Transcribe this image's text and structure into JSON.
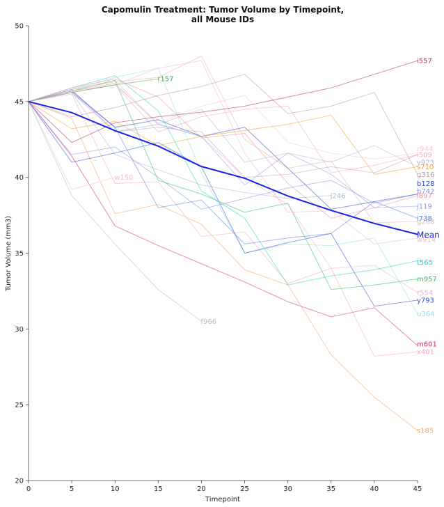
{
  "chart_data": {
    "type": "line",
    "title_lines": [
      "Capomulin Treatment: Tumor Volume by Timepoint,",
      "all Mouse IDs"
    ],
    "xlabel": "Timepoint",
    "ylabel": "Tumor Volume (mm3)",
    "xlim": [
      0,
      45
    ],
    "ylim": [
      20,
      50
    ],
    "x_ticks": [
      0,
      5,
      10,
      15,
      20,
      25,
      30,
      35,
      40,
      45
    ],
    "y_ticks": [
      20,
      25,
      30,
      35,
      40,
      45,
      50
    ],
    "grid": false,
    "series": [
      {
        "name": "s185",
        "color": "#f4a460",
        "x": [
          0,
          5,
          10,
          15,
          20,
          25,
          30,
          35,
          40,
          45
        ],
        "y": [
          45.0,
          43.9,
          37.6,
          38.2,
          36.9,
          33.9,
          32.9,
          28.3,
          25.5,
          23.3
        ],
        "label_y": 23.3
      },
      {
        "name": "x401",
        "color": "#f7a8b8",
        "x": [
          0,
          5,
          10,
          15,
          20,
          25,
          30,
          35,
          40,
          45
        ],
        "y": [
          45.0,
          45.5,
          39.6,
          39.7,
          36.1,
          36.4,
          33.0,
          34.0,
          28.2,
          28.5
        ],
        "label_y": 28.5
      },
      {
        "name": "m601",
        "color": "#d22d5e",
        "x": [
          0,
          5,
          10,
          15,
          20,
          25,
          30,
          35,
          40,
          45
        ],
        "y": [
          45.0,
          41.4,
          36.8,
          35.5,
          34.3,
          33.1,
          31.8,
          30.8,
          31.4,
          28.9
        ],
        "label_y": 29.0
      },
      {
        "name": "f966",
        "color": "#bbbbbb",
        "x": [
          0,
          5,
          10,
          15,
          20
        ],
        "y": [
          45.0,
          38.8,
          35.6,
          32.6,
          30.5
        ],
        "label_y": 30.5
      },
      {
        "name": "u364",
        "color": "#8fe3e0",
        "x": [
          0,
          5,
          10,
          15,
          20,
          25,
          30,
          35,
          40,
          45
        ],
        "y": [
          45.0,
          45.8,
          46.6,
          47.2,
          40.3,
          35.0,
          35.6,
          35.5,
          36.0,
          31.0
        ],
        "label_y": 31.0
      },
      {
        "name": "y793",
        "color": "#3b4fd9",
        "x": [
          0,
          5,
          10,
          15,
          20,
          25,
          30,
          35,
          40,
          45
        ],
        "y": [
          45.0,
          41.0,
          41.6,
          42.3,
          40.7,
          35.0,
          35.7,
          36.3,
          31.5,
          31.9
        ],
        "label_y": 31.9
      },
      {
        "name": "r554",
        "color": "#e3b9c8",
        "x": [
          0,
          5,
          10,
          15,
          20,
          25,
          30,
          35,
          40,
          45
        ],
        "y": [
          45.0,
          45.8,
          46.4,
          43.5,
          42.7,
          40.0,
          38.2,
          34.0,
          34.2,
          32.4
        ],
        "label_y": 32.4
      },
      {
        "name": "m957",
        "color": "#2dbf56",
        "x": [
          0,
          5,
          10,
          15,
          20,
          25,
          30,
          35,
          40,
          45
        ],
        "y": [
          45.0,
          45.7,
          46.4,
          39.8,
          38.9,
          37.7,
          38.3,
          32.6,
          32.9,
          33.3
        ],
        "label_y": 33.3
      },
      {
        "name": "t565",
        "color": "#27d3c3",
        "x": [
          0,
          5,
          10,
          15,
          20,
          25,
          30,
          35,
          40,
          45
        ],
        "y": [
          45.0,
          45.9,
          46.7,
          44.4,
          39.1,
          37.3,
          32.9,
          33.5,
          33.9,
          34.5
        ],
        "label_y": 34.4
      },
      {
        "name": "w914",
        "color": "#f5b7cf",
        "x": [
          0,
          5,
          10,
          15,
          20,
          25,
          30,
          35,
          40,
          45
        ],
        "y": [
          45.0,
          45.6,
          46.1,
          47.2,
          47.7,
          41.6,
          37.7,
          37.8,
          35.6,
          36.0
        ],
        "label_y": 35.9
      },
      {
        "name": "g288",
        "color": "#e9b4a8",
        "x": [
          0,
          5,
          10,
          15,
          20,
          25,
          30,
          35,
          40,
          45
        ],
        "y": [
          45.0,
          45.8,
          46.3,
          46.6,
          48.0,
          42.5,
          40.6,
          41.1,
          37.0,
          37.1
        ],
        "label_y": 37.1
      },
      {
        "name": "i738",
        "color": "#5b7fe0",
        "x": [
          0,
          5,
          10,
          15,
          20,
          25,
          30,
          35,
          40,
          45
        ],
        "y": [
          45.0,
          45.6,
          43.3,
          38.0,
          38.5,
          35.6,
          36.0,
          36.3,
          38.4,
          37.3
        ],
        "label_y": 37.3
      },
      {
        "name": "j119",
        "color": "#8ea0ee",
        "x": [
          0,
          5,
          10,
          15,
          20,
          25,
          30,
          35,
          40,
          45
        ],
        "y": [
          45.0,
          45.8,
          43.0,
          43.5,
          42.7,
          39.5,
          41.6,
          40.2,
          38.0,
          38.1
        ],
        "label_y": 38.1
      },
      {
        "name": "l897",
        "color": "#ee8fa0",
        "x": [
          0,
          5,
          10,
          15,
          20,
          25,
          30,
          35,
          40,
          45
        ],
        "y": [
          45.0,
          45.9,
          46.5,
          45.3,
          42.6,
          42.9,
          39.6,
          37.3,
          38.0,
          38.8
        ],
        "label_y": 38.8
      },
      {
        "name": "b742",
        "color": "#8894e6",
        "x": [
          0,
          5,
          10,
          15,
          20,
          25,
          30,
          35,
          40,
          45
        ],
        "y": [
          45.0,
          41.5,
          42.0,
          40.0,
          37.9,
          38.6,
          39.3,
          39.8,
          38.3,
          38.9
        ],
        "label_y": 39.1
      },
      {
        "name": "b128",
        "color": "#3046b8",
        "x": [
          0,
          5,
          10,
          15,
          20,
          25,
          30,
          35,
          40,
          45
        ],
        "y": [
          45.0,
          45.7,
          43.3,
          43.8,
          42.7,
          43.3,
          40.6,
          37.9,
          38.4,
          38.9
        ],
        "label_y": 39.6
      },
      {
        "name": "g316",
        "color": "#c090a8",
        "x": [
          0,
          5,
          10,
          15,
          20,
          25,
          30,
          35,
          40,
          45
        ],
        "y": [
          45.0,
          44.0,
          44.6,
          45.4,
          46.0,
          46.8,
          44.2,
          44.7,
          45.6,
          40.2
        ],
        "label_y": 40.2
      },
      {
        "name": "s710",
        "color": "#f0a030",
        "x": [
          0,
          5,
          10,
          15,
          20,
          25,
          30,
          35,
          40,
          45
        ],
        "y": [
          45.0,
          43.2,
          43.7,
          42.1,
          42.7,
          43.1,
          43.5,
          44.1,
          40.2,
          40.7
        ],
        "label_y": 40.7
      },
      {
        "name": "v923",
        "color": "#b0b8c8",
        "x": [
          0,
          5,
          10,
          15,
          20,
          25,
          30,
          35,
          40,
          45
        ],
        "y": [
          45.0,
          45.7,
          46.2,
          43.5,
          44.5,
          41.0,
          41.6,
          41.0,
          42.1,
          40.7
        ],
        "label_y": 41.0
      },
      {
        "name": "i509",
        "color": "#f0a8b8",
        "x": [
          0,
          5,
          10,
          15,
          20,
          25,
          30,
          35,
          40,
          45
        ],
        "y": [
          45.0,
          45.7,
          46.1,
          43.0,
          44.0,
          44.5,
          44.7,
          40.3,
          40.8,
          41.5
        ],
        "label_y": 41.5
      },
      {
        "name": "r944",
        "color": "#f8c8d0",
        "x": [
          0,
          5,
          10,
          15,
          20,
          25,
          30,
          35,
          40,
          45
        ],
        "y": [
          45.0,
          45.6,
          46.1,
          43.6,
          44.7,
          45.4,
          42.3,
          41.6,
          41.2,
          41.6
        ],
        "label_y": 41.9
      },
      {
        "name": "r157",
        "color": "#4aa84f",
        "x": [
          0,
          5,
          10,
          15
        ],
        "y": [
          45.0,
          45.6,
          46.1,
          46.5
        ],
        "label_y": 46.5
      },
      {
        "name": "l509",
        "color": "#c8a0b8",
        "x": [
          0,
          5,
          10,
          15,
          20,
          25,
          30,
          35,
          40,
          45
        ],
        "y": [
          45.0,
          45.6,
          43.0,
          43.3,
          43.0,
          40.0,
          40.2,
          40.7,
          40.3,
          41.5
        ],
        "label_y": null
      },
      {
        "name": "j246",
        "color": "#a8b8c8",
        "x": [
          0,
          5,
          10,
          15,
          20,
          25,
          30,
          35
        ],
        "y": [
          45.0,
          45.6,
          41.5,
          40.5,
          39.5,
          39.0,
          38.6,
          38.8
        ],
        "label_y": 38.8,
        "label_x": 35
      },
      {
        "name": "w150",
        "color": "#f0c0c8",
        "x": [
          0,
          5,
          10
        ],
        "y": [
          45.0,
          39.2,
          40.0
        ],
        "label_y": 40.0,
        "label_x": 10
      },
      {
        "name": "i557",
        "color": "#b03060",
        "x": [
          0,
          5,
          10,
          15,
          20,
          25,
          30,
          35,
          40,
          45
        ],
        "y": [
          45.0,
          42.3,
          43.6,
          44.0,
          44.3,
          44.7,
          45.3,
          45.9,
          46.8,
          47.7
        ],
        "label_y": 47.7
      }
    ],
    "mean_series": {
      "name": "Mean",
      "color": "#1a22e6",
      "x": [
        0,
        5,
        10,
        15,
        20,
        25,
        30,
        35,
        40,
        45
      ],
      "y": [
        45.0,
        44.27,
        43.08,
        42.06,
        40.72,
        39.94,
        38.77,
        37.82,
        36.96,
        36.24
      ],
      "label_y": 36.2
    }
  }
}
